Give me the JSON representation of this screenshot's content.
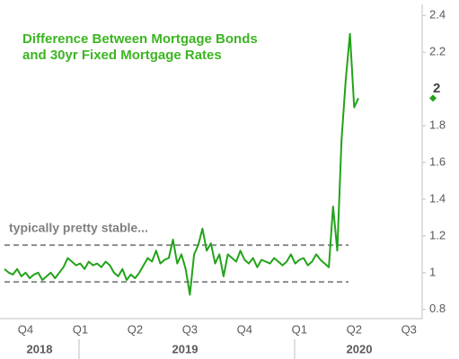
{
  "chart_data": {
    "type": "line",
    "title": [
      "Difference Between Mortgage Bonds",
      "and 30yr Fixed Mortgage Rates"
    ],
    "annotation": "typically pretty stable...",
    "reference_lines": [
      1.15,
      0.95
    ],
    "categories": [
      null,
      null,
      null,
      null,
      null,
      "Q4",
      null,
      null,
      null,
      null,
      null,
      null,
      null,
      null,
      null,
      null,
      null,
      null,
      "Q1",
      null,
      null,
      null,
      null,
      null,
      null,
      null,
      null,
      null,
      null,
      null,
      null,
      "Q2",
      null,
      null,
      null,
      null,
      null,
      null,
      null,
      null,
      null,
      null,
      null,
      null,
      "Q3",
      null,
      null,
      null,
      null,
      null,
      null,
      null,
      null,
      null,
      null,
      null,
      null,
      "Q4",
      null,
      null,
      null,
      null,
      null,
      null,
      null,
      null,
      null,
      null,
      null,
      null,
      "Q1",
      null,
      null,
      null,
      null,
      null,
      null,
      null,
      null,
      null,
      null,
      null,
      null,
      "Q2",
      null,
      null,
      null,
      null,
      null,
      null,
      null,
      null,
      null,
      null,
      null,
      null,
      "Q3"
    ],
    "years": [
      "2018",
      "2019",
      "2020"
    ],
    "series": [
      {
        "color": "#22a319",
        "values": [
          1.02,
          1.0,
          0.99,
          1.02,
          0.98,
          1.0,
          0.97,
          0.99,
          1.0,
          0.96,
          0.98,
          1.0,
          0.97,
          1.0,
          1.03,
          1.08,
          1.06,
          1.04,
          1.05,
          1.02,
          1.06,
          1.04,
          1.05,
          1.03,
          1.06,
          1.04,
          1.0,
          0.98,
          1.02,
          0.96,
          0.99,
          0.97,
          1.0,
          1.04,
          1.08,
          1.06,
          1.12,
          1.05,
          1.07,
          1.08,
          1.18,
          1.05,
          1.1,
          1.02,
          0.88,
          1.1,
          1.15,
          1.24,
          1.12,
          1.16,
          1.05,
          1.1,
          0.98,
          1.1,
          1.08,
          1.06,
          1.12,
          1.07,
          1.05,
          1.08,
          1.03,
          1.07,
          1.06,
          1.05,
          1.08,
          1.06,
          1.04,
          1.06,
          1.1,
          1.05,
          1.07,
          1.08,
          1.04,
          1.06,
          1.1,
          1.07,
          1.05,
          1.03,
          1.36,
          1.12,
          1.72,
          2.05,
          2.3,
          1.9,
          1.95,
          null,
          null,
          null,
          null,
          null,
          null,
          null,
          null,
          null,
          null,
          null,
          null
        ]
      }
    ],
    "end_label": {
      "value": 1.95,
      "label": "2"
    },
    "ylim": [
      0.75,
      2.46
    ],
    "yticks": [
      0.8,
      1,
      1.2,
      1.4,
      1.6,
      1.8,
      2.2,
      2.4
    ],
    "axis_side": "right"
  }
}
